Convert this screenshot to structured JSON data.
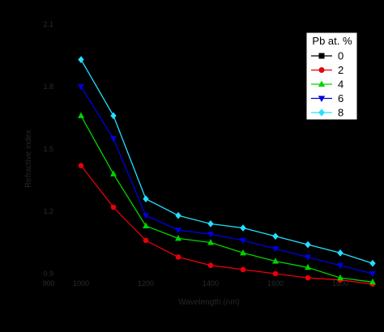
{
  "chart_data": {
    "type": "line",
    "title": "",
    "xlabel": "Wavelength (nm)",
    "ylabel": "Refractive index",
    "xlim": [
      900,
      1900
    ],
    "ylim": [
      0.9,
      2.1
    ],
    "x_ticks": [
      900,
      1000,
      1100,
      1200,
      1300,
      1400,
      1500,
      1600,
      1700,
      1800,
      1900
    ],
    "x_tick_labels": [
      "900",
      "1000",
      "",
      "1200",
      "",
      "1400",
      "",
      "1600",
      "",
      "1800",
      ""
    ],
    "y_ticks": [
      0.9,
      1.2,
      1.5,
      1.8,
      2.1
    ],
    "y_tick_labels": [
      "0.9",
      "1.2",
      "1.5",
      "1.8",
      "2.1"
    ],
    "grid": false,
    "legend": {
      "title": "Pb at. %",
      "placement": "top-right"
    },
    "x": [
      1000,
      1100,
      1200,
      1300,
      1400,
      1500,
      1600,
      1700,
      1800,
      1900
    ],
    "series": [
      {
        "name": "0",
        "color": "#000000",
        "marker": "square",
        "values": [
          1.42,
          1.22,
          1.06,
          0.98,
          0.94,
          0.92,
          0.9,
          0.88,
          0.87,
          0.85
        ]
      },
      {
        "name": "2",
        "color": "#e8000b",
        "marker": "circle",
        "values": [
          1.42,
          1.22,
          1.06,
          0.98,
          0.94,
          0.92,
          0.9,
          0.88,
          0.87,
          0.85
        ]
      },
      {
        "name": "4",
        "color": "#00d400",
        "marker": "triangle-up",
        "values": [
          1.66,
          1.38,
          1.13,
          1.07,
          1.05,
          1.0,
          0.96,
          0.93,
          0.88,
          0.86
        ]
      },
      {
        "name": "6",
        "color": "#0000e0",
        "marker": "triangle-down",
        "values": [
          1.8,
          1.55,
          1.18,
          1.11,
          1.09,
          1.06,
          1.02,
          0.98,
          0.94,
          0.9
        ]
      },
      {
        "name": "8",
        "color": "#22e0ff",
        "marker": "diamond",
        "values": [
          1.93,
          1.66,
          1.26,
          1.18,
          1.14,
          1.12,
          1.08,
          1.04,
          1.0,
          0.95
        ]
      }
    ]
  }
}
